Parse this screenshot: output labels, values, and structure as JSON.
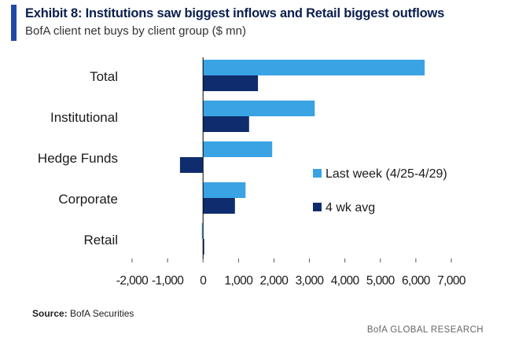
{
  "header": {
    "title": "Exhibit 8: Institutions saw biggest inflows and Retail biggest outflows",
    "subtitle": "BofA client net buys by client group ($ mn)"
  },
  "footer": {
    "source_label": "Source:",
    "source_value": "BofA Securities",
    "brand": "BofA GLOBAL RESEARCH"
  },
  "colors": {
    "last_week": "#3aa3e3",
    "four_wk_avg": "#0f2c6e",
    "axis": "#000000",
    "accent": "#1f4aa8"
  },
  "chart_data": {
    "type": "bar",
    "orientation": "horizontal",
    "title": "Exhibit 8: Institutions saw biggest inflows and Retail biggest outflows",
    "subtitle": "BofA client net buys by client group ($ mn)",
    "xlabel": "",
    "ylabel": "",
    "xlim": [
      -2000,
      7000
    ],
    "ticks": [
      -2000,
      -1000,
      0,
      1000,
      2000,
      3000,
      4000,
      5000,
      6000,
      7000
    ],
    "tick_labels": [
      "-2,000",
      "-1,000",
      "0",
      "1,000",
      "2,000",
      "3,000",
      "4,000",
      "5,000",
      "6,000",
      "7,000"
    ],
    "grid": false,
    "legend_position": "right",
    "categories": [
      "Total",
      "Institutional",
      "Hedge Funds",
      "Corporate",
      "Retail"
    ],
    "series": [
      {
        "name": "Last week (4/25-4/29)",
        "values": [
          6250,
          3150,
          1950,
          1200,
          -30
        ]
      },
      {
        "name": "4 wk avg",
        "values": [
          1550,
          1300,
          -650,
          900,
          10
        ]
      }
    ]
  }
}
